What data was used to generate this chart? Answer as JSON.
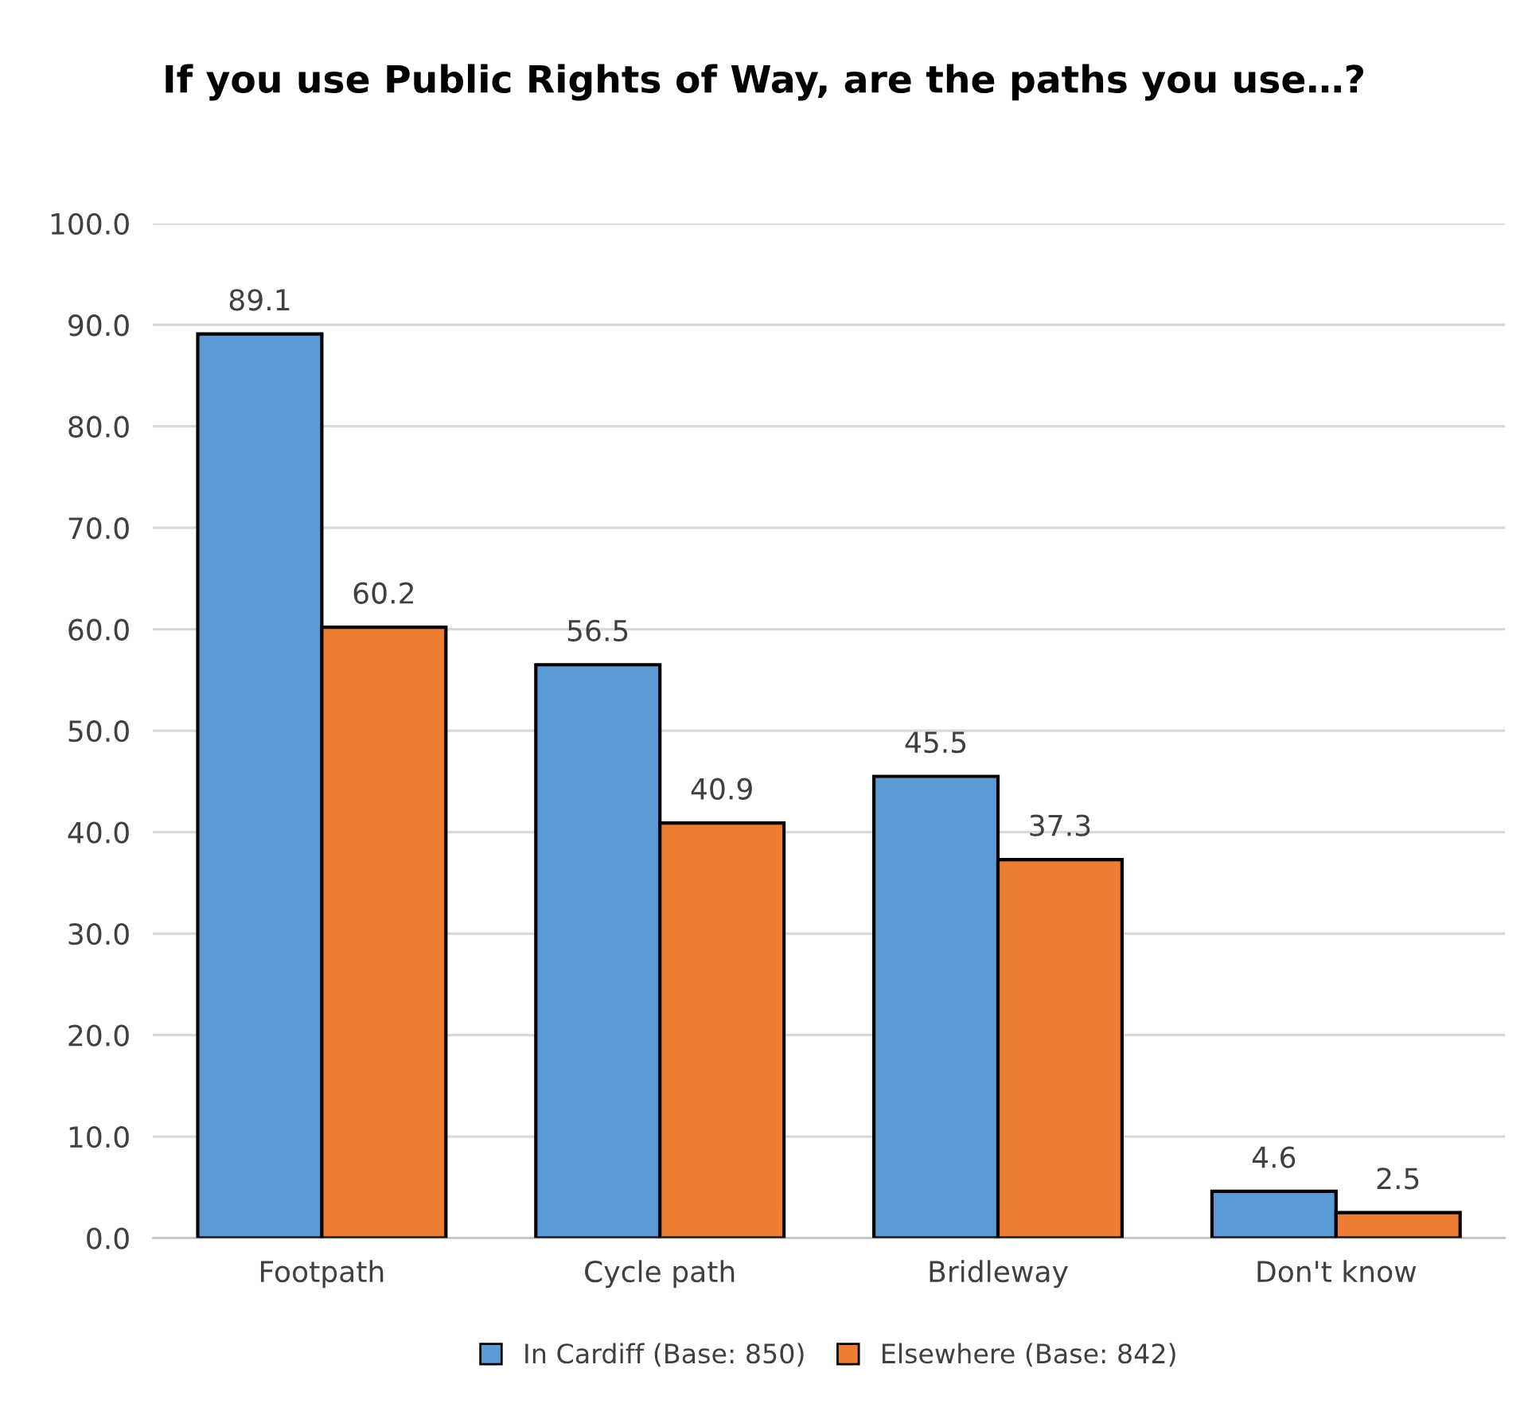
{
  "chart_data": {
    "type": "bar",
    "title": "If you use Public Rights of Way, are the paths you use…?",
    "categories": [
      "Footpath",
      "Cycle path",
      "Bridleway",
      "Don't know"
    ],
    "series": [
      {
        "name": "In Cardiff (Base: 850)",
        "color": "#5b9bd5",
        "values": [
          89.1,
          56.5,
          45.5,
          4.6
        ]
      },
      {
        "name": "Elsewhere (Base: 842)",
        "color": "#ed7d31",
        "values": [
          60.2,
          40.9,
          37.3,
          2.5
        ]
      }
    ],
    "ylim": [
      0,
      100
    ],
    "yticks": [
      {
        "value": 0,
        "label": "0.0"
      },
      {
        "value": 10,
        "label": "10.0"
      },
      {
        "value": 20,
        "label": "20.0"
      },
      {
        "value": 30,
        "label": "30.0"
      },
      {
        "value": 40,
        "label": "40.0"
      },
      {
        "value": 50,
        "label": "50.0"
      },
      {
        "value": 60,
        "label": "60.0"
      },
      {
        "value": 70,
        "label": "70.0"
      },
      {
        "value": 80,
        "label": "80.0"
      },
      {
        "value": 90,
        "label": "90.0"
      },
      {
        "value": 100,
        "label": "100.0"
      }
    ],
    "grid": "y",
    "legend": "bottom",
    "data_labels": true
  }
}
